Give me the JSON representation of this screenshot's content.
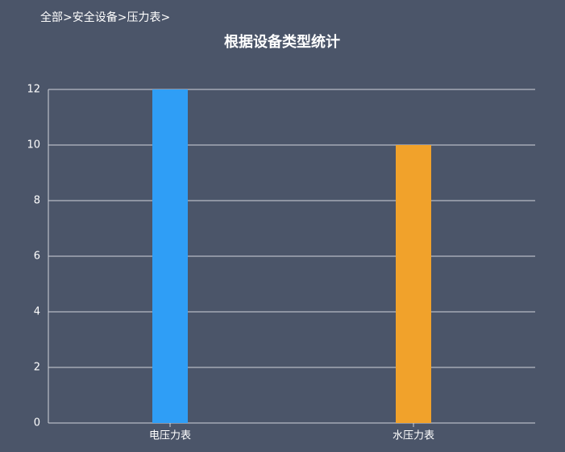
{
  "breadcrumb": "全部>安全设备>压力表>",
  "chart_data": {
    "type": "bar",
    "title": "根据设备类型统计",
    "categories": [
      "电压力表",
      "水压力表"
    ],
    "values": [
      12,
      10
    ],
    "colors": [
      "#2f9ef6",
      "#f1a22b"
    ],
    "ylim": [
      0,
      12
    ],
    "yticks": [
      0,
      2,
      4,
      6,
      8,
      10,
      12
    ],
    "grid": true
  }
}
